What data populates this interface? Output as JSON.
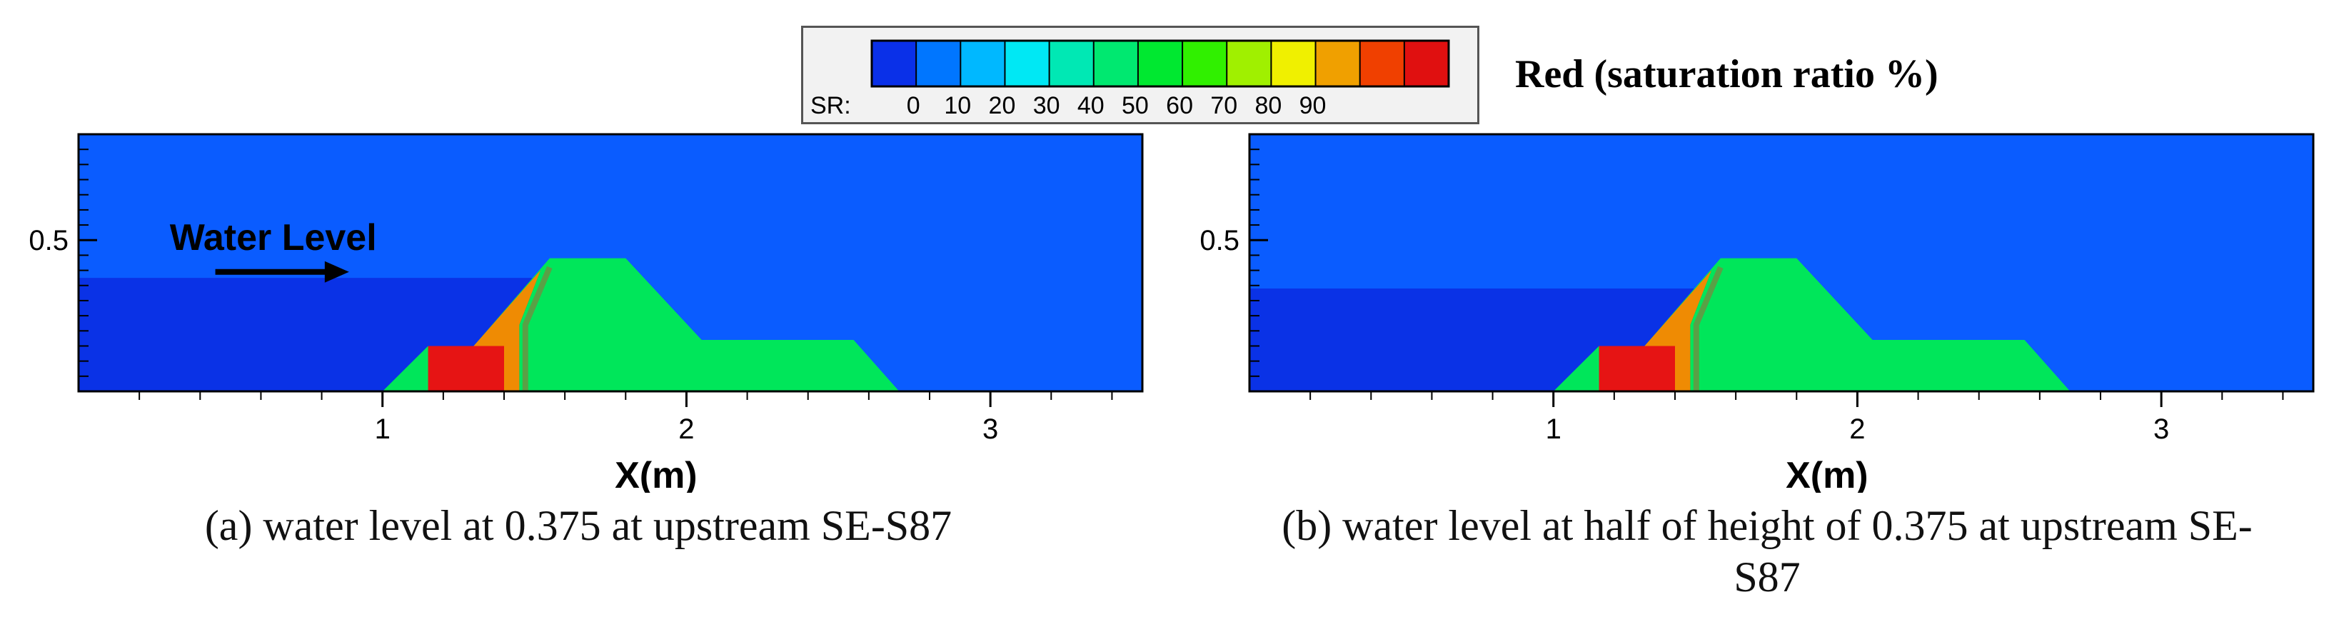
{
  "legend": {
    "label": "SR:",
    "title": "Red (saturation ratio %)",
    "ticks": [
      "0",
      "10",
      "20",
      "30",
      "40",
      "50",
      "60",
      "70",
      "80",
      "90"
    ],
    "colors": [
      "#0a30e8",
      "#0076ff",
      "#00b8ff",
      "#00e8f4",
      "#00e8b4",
      "#00e870",
      "#00e830",
      "#30f000",
      "#a0f000",
      "#f0f000",
      "#f0a000",
      "#f04000",
      "#e01010"
    ]
  },
  "colors": {
    "water_background": "#0a5cff",
    "water_below_level": "#0a32e6",
    "dam_body": "#00e65a",
    "saturated_core": "#e61414",
    "core_boundary": "#5aa046"
  },
  "annotation": {
    "water_level_label": "Water Level"
  },
  "chart_data": [
    {
      "type": "other",
      "title": "",
      "caption": "(a) water level at 0.375 at upstream SE-S87",
      "xlabel": "X(m)",
      "ylabel": "",
      "xlim": [
        0,
        3.5
      ],
      "ylim": [
        0,
        0.85
      ],
      "x_ticks": [
        "1",
        "2",
        "3"
      ],
      "y_ticks": [
        "0.5"
      ],
      "water_level_m": 0.375,
      "dam_profile": {
        "x": [
          1.0,
          1.15,
          1.3,
          1.55,
          1.8,
          2.05,
          2.55,
          2.7
        ],
        "y": [
          0.0,
          0.15,
          0.15,
          0.44,
          0.44,
          0.17,
          0.17,
          0.0
        ]
      }
    },
    {
      "type": "other",
      "title": "",
      "caption": "(b) water level at half of height of 0.375 at upstream SE-S87",
      "xlabel": "X(m)",
      "ylabel": "",
      "xlim": [
        0,
        3.5
      ],
      "ylim": [
        0,
        0.85
      ],
      "x_ticks": [
        "1",
        "2",
        "3"
      ],
      "y_ticks": [
        "0.5"
      ],
      "water_level_m": 0.34,
      "dam_profile": {
        "x": [
          1.0,
          1.15,
          1.3,
          1.55,
          1.8,
          2.05,
          2.55,
          2.7
        ],
        "y": [
          0.0,
          0.15,
          0.15,
          0.44,
          0.44,
          0.17,
          0.17,
          0.0
        ]
      }
    }
  ]
}
